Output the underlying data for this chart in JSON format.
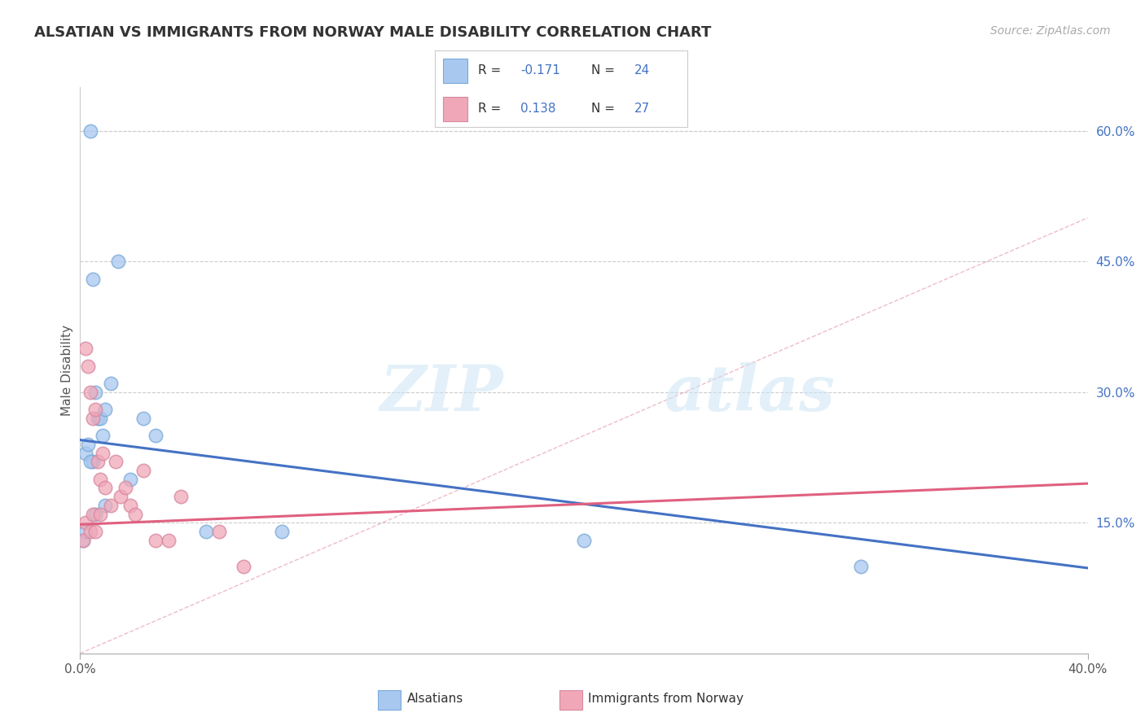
{
  "title": "ALSATIAN VS IMMIGRANTS FROM NORWAY MALE DISABILITY CORRELATION CHART",
  "source": "Source: ZipAtlas.com",
  "ylabel": "Male Disability",
  "xlim": [
    0.0,
    0.4
  ],
  "ylim": [
    0.0,
    0.65
  ],
  "y_ticks_right": [
    0.15,
    0.3,
    0.45,
    0.6
  ],
  "y_tick_labels_right": [
    "15.0%",
    "30.0%",
    "45.0%",
    "60.0%"
  ],
  "blue_color": "#a8c8f0",
  "pink_color": "#f0a8b8",
  "line_blue": "#4472C4",
  "line_pink": "#E06080",
  "blue_marker_edge": "#7aaad8",
  "pink_marker_edge": "#d888a0",
  "blue_line_start_y": 0.245,
  "blue_line_end_y": 0.098,
  "pink_line_start_y": 0.148,
  "pink_line_end_y": 0.195,
  "alsatian_x": [
    0.001,
    0.002,
    0.002,
    0.003,
    0.004,
    0.005,
    0.005,
    0.006,
    0.006,
    0.007,
    0.008,
    0.009,
    0.01,
    0.012,
    0.015,
    0.02,
    0.025,
    0.03,
    0.05,
    0.08,
    0.2,
    0.31,
    0.004,
    0.01
  ],
  "alsatian_y": [
    0.13,
    0.14,
    0.23,
    0.24,
    0.6,
    0.22,
    0.43,
    0.3,
    0.16,
    0.27,
    0.27,
    0.25,
    0.28,
    0.31,
    0.45,
    0.2,
    0.27,
    0.25,
    0.14,
    0.14,
    0.13,
    0.1,
    0.22,
    0.17
  ],
  "norway_x": [
    0.001,
    0.002,
    0.002,
    0.003,
    0.004,
    0.004,
    0.005,
    0.005,
    0.006,
    0.006,
    0.007,
    0.008,
    0.008,
    0.009,
    0.01,
    0.012,
    0.014,
    0.016,
    0.018,
    0.02,
    0.022,
    0.025,
    0.03,
    0.035,
    0.04,
    0.055,
    0.065
  ],
  "norway_y": [
    0.13,
    0.35,
    0.15,
    0.33,
    0.3,
    0.14,
    0.27,
    0.16,
    0.28,
    0.14,
    0.22,
    0.2,
    0.16,
    0.23,
    0.19,
    0.17,
    0.22,
    0.18,
    0.19,
    0.17,
    0.16,
    0.21,
    0.13,
    0.13,
    0.18,
    0.14,
    0.1
  ]
}
